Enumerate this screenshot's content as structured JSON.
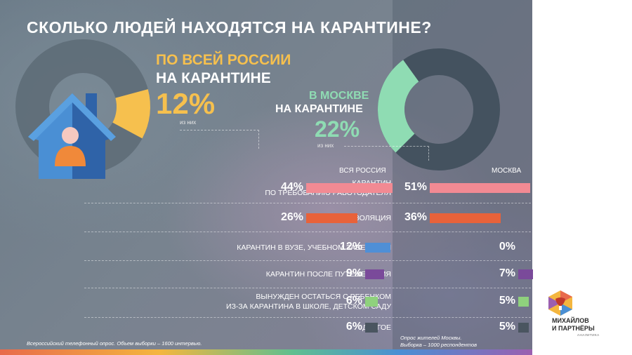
{
  "title": "СКОЛЬКО ЛЮДЕЙ НАХОДЯТСЯ НА КАРАНТИНЕ?",
  "russia": {
    "heading_line1": "ПО ВСЕЙ РОССИИ",
    "heading_line2": "НА КАРАНТИНЕ",
    "percent": "12%",
    "value": 12,
    "sub_note": "из них"
  },
  "moscow": {
    "heading_line1": "В МОСКВЕ",
    "heading_line2": "НА КАРАНТИНЕ",
    "percent": "22%",
    "value": 22,
    "sub_note": "из них"
  },
  "colors": {
    "yellow": "#f6c04e",
    "mint": "#8fdcb3",
    "donut_dark": "#44525f",
    "house_blue": "#4a8fd4",
    "house_dark_blue": "#2f63a8",
    "person_skin": "#f6c9c0",
    "person_body": "#f0893a"
  },
  "chart_data": {
    "type": "bar",
    "title": "СКОЛЬКО ЛЮДЕЙ НАХОДЯТСЯ НА КАРАНТИНЕ?",
    "orientation": "horizontal",
    "categories": [
      "КАРАНТИН ПО ТРЕБОВАНИЮ РАБОТОДАТЕЛЯ",
      "САМОИЗОЛЯЦИЯ",
      "КАРАНТИН В ВУЗЕ, УЧЕБНОМ ЗАВЕДЕНИИ",
      "КАРАНТИН ПОСЛЕ ПУТЕШЕСТВИЯ",
      "ВЫНУЖДЕН ОСТАТЬСЯ С РЕБЕНКОМ ИЗ-ЗА КАРАНТИНА В ШКОЛЕ, ДЕТСКОМ САДУ",
      "ДРУГОЕ"
    ],
    "category_lines": [
      [
        "КАРАНТИН",
        "ПО ТРЕБОВАНИЮ РАБОТОДАТЕЛЯ"
      ],
      [
        "САМОИЗОЛЯЦИЯ"
      ],
      [
        "КАРАНТИН В ВУЗЕ, УЧЕБНОМ ЗАВЕДЕНИИ"
      ],
      [
        "КАРАНТИН ПОСЛЕ ПУТЕШЕСТВИЯ"
      ],
      [
        "ВЫНУЖДЕН ОСТАТЬСЯ С РЕБЕНКОМ",
        "ИЗ-ЗА КАРАНТИНА В ШКОЛЕ, ДЕТСКОМ САДУ"
      ],
      [
        "ДРУГОЕ"
      ]
    ],
    "bar_colors": [
      "#f28a93",
      "#e8623a",
      "#4f8fd6",
      "#7a4a9a",
      "#8fd17d",
      "#4a5560"
    ],
    "series": [
      {
        "name": "ВСЯ РОССИЯ",
        "values": [
          44,
          26,
          12,
          9,
          6,
          6
        ],
        "labels": [
          "44%",
          "26%",
          "12%",
          "9%",
          "6%",
          "6%"
        ]
      },
      {
        "name": "МОСКВА",
        "values": [
          51,
          36,
          0,
          7,
          5,
          5
        ],
        "labels": [
          "51%",
          "36%",
          "0%",
          "7%",
          "5%",
          "5%"
        ]
      }
    ],
    "xlim": [
      0,
      100
    ]
  },
  "footnotes": {
    "russia": "Всероссийский телефонный опрос. Объем выборки – 1600 интервью.",
    "moscow_line1": "Опрос жителей Москвы.",
    "moscow_line2": "Выборка – 1000 респондентов"
  },
  "logo": {
    "line1": "МИХАЙЛОВ",
    "line2": "И ПАРТНЁРЫ",
    "sub": "АНАЛИТИКА"
  }
}
